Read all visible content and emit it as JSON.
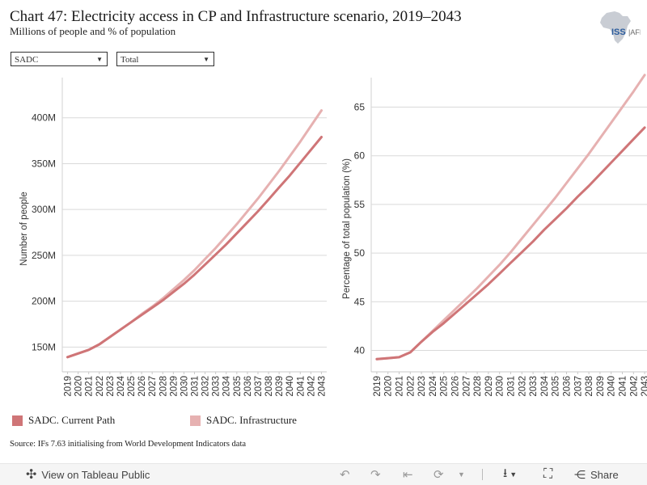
{
  "header": {
    "title": "Chart 47: Electricity access in CP and Infrastructure scenario, 2019–2043",
    "subtitle": "Millions of people and % of population",
    "logo_text": "ISS"
  },
  "filters": {
    "region_value": "SADC",
    "group_value": "Total"
  },
  "colors": {
    "current_path": "#cf7577",
    "infrastructure": "#e6b1b1"
  },
  "chart_data": [
    {
      "type": "line",
      "ylabel": "Number of people",
      "y_ticks": [
        150,
        200,
        250,
        300,
        350,
        400
      ],
      "y_tick_labels": [
        "150M",
        "200M",
        "250M",
        "300M",
        "350M",
        "400M"
      ],
      "ylim": [
        123,
        435
      ],
      "x": [
        "2019",
        "2020",
        "2021",
        "2022",
        "2023",
        "2024",
        "2025",
        "2026",
        "2027",
        "2028",
        "2029",
        "2030",
        "2031",
        "2032",
        "2033",
        "2034",
        "2035",
        "2036",
        "2037",
        "2038",
        "2039",
        "2040",
        "2041",
        "2042",
        "2043"
      ],
      "grid": true,
      "series": [
        {
          "name": "SADC. Current Path",
          "values": [
            139,
            143,
            147,
            153,
            161,
            169,
            177,
            185,
            193,
            201,
            210,
            219,
            229,
            240,
            251,
            262,
            274,
            286,
            298,
            311,
            324,
            337,
            351,
            365,
            379
          ]
        },
        {
          "name": "SADC. Infrastructure",
          "values": [
            139,
            143,
            147,
            153,
            161,
            169,
            177,
            186,
            194,
            203,
            213,
            223,
            234,
            246,
            258,
            271,
            284,
            298,
            312,
            327,
            342,
            358,
            374,
            391,
            408
          ]
        }
      ]
    },
    {
      "type": "line",
      "ylabel": "Percentage of total population (%)",
      "y_ticks": [
        40,
        45,
        50,
        55,
        60,
        65
      ],
      "y_tick_labels": [
        "40",
        "45",
        "50",
        "55",
        "60",
        "65"
      ],
      "ylim": [
        37.8,
        67.2
      ],
      "x": [
        "2019",
        "2020",
        "2021",
        "2022",
        "2023",
        "2024",
        "2025",
        "2026",
        "2027",
        "2028",
        "2029",
        "2030",
        "2031",
        "2032",
        "2033",
        "2034",
        "2035",
        "2036",
        "2037",
        "2038",
        "2039",
        "2040",
        "2041",
        "2042",
        "2043"
      ],
      "grid": true,
      "series": [
        {
          "name": "SADC. Current Path",
          "values": [
            39.1,
            39.2,
            39.3,
            39.8,
            40.9,
            41.9,
            42.8,
            43.8,
            44.8,
            45.8,
            46.8,
            47.9,
            49.0,
            50.1,
            51.2,
            52.4,
            53.5,
            54.6,
            55.8,
            56.9,
            58.1,
            59.3,
            60.5,
            61.7,
            62.9
          ]
        },
        {
          "name": "SADC. Infrastructure",
          "values": [
            39.1,
            39.2,
            39.3,
            39.8,
            40.9,
            42.0,
            43.1,
            44.2,
            45.3,
            46.4,
            47.6,
            48.8,
            50.1,
            51.5,
            52.9,
            54.3,
            55.7,
            57.2,
            58.7,
            60.2,
            61.8,
            63.4,
            65.0,
            66.6,
            68.3
          ]
        }
      ]
    }
  ],
  "legend": {
    "current_path": "SADC. Current Path",
    "infrastructure": "SADC. Infrastructure"
  },
  "source": "Source: IFs 7.63 initialising from World Development Indicators data",
  "footer": {
    "view_label": "View on Tableau Public",
    "share_label": "Share"
  }
}
